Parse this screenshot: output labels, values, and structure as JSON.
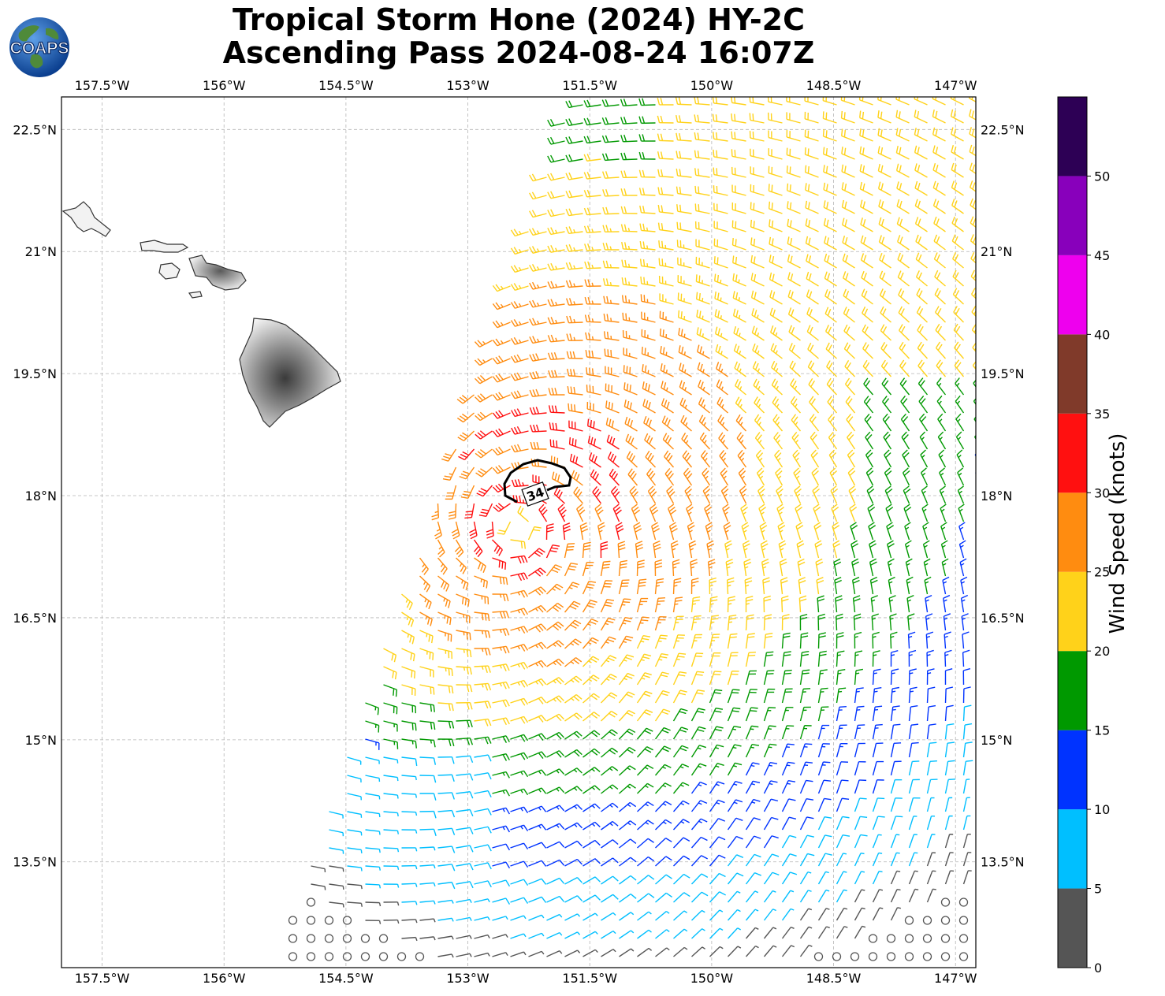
{
  "title": {
    "line1": "Tropical Storm Hone (2024) HY-2C",
    "line2": "Ascending Pass 2024-08-24 16:07Z"
  },
  "logo": {
    "text": "COAPS",
    "icon": "globe-icon"
  },
  "map": {
    "lon_range": [
      -158.0,
      -146.75
    ],
    "lat_range": [
      12.2,
      22.9
    ],
    "lon_ticks": [
      -157.5,
      -156,
      -154.5,
      -153,
      -151.5,
      -150,
      -148.5,
      -147
    ],
    "lon_tick_labels": [
      "157.5°W",
      "156°W",
      "154.5°W",
      "153°W",
      "151.5°W",
      "150°W",
      "148.5°W",
      "147°W"
    ],
    "lat_ticks": [
      13.5,
      15,
      16.5,
      18,
      19.5,
      21,
      22.5
    ],
    "lat_tick_labels": [
      "13.5°N",
      "15°N",
      "16.5°N",
      "18°N",
      "19.5°N",
      "21°N",
      "22.5°N"
    ],
    "gridlines": true,
    "storm_center": {
      "lon": -152.4,
      "lat": 17.6
    },
    "contour_label": "34",
    "land_color": "#f2f2f2",
    "coast_color": "#333333"
  },
  "colorbar": {
    "label": "Wind Speed (knots)",
    "ticks": [
      "0",
      "5",
      "10",
      "15",
      "20",
      "25",
      "30",
      "35",
      "40",
      "45",
      "50"
    ],
    "bins": [
      {
        "min": 0,
        "max": 5,
        "color": "#555555"
      },
      {
        "min": 5,
        "max": 10,
        "color": "#00bfff"
      },
      {
        "min": 10,
        "max": 15,
        "color": "#0033ff"
      },
      {
        "min": 15,
        "max": 20,
        "color": "#009900"
      },
      {
        "min": 20,
        "max": 25,
        "color": "#ffd21a"
      },
      {
        "min": 25,
        "max": 30,
        "color": "#ff8c10"
      },
      {
        "min": 30,
        "max": 35,
        "color": "#ff1010"
      },
      {
        "min": 35,
        "max": 40,
        "color": "#803a2a"
      },
      {
        "min": 40,
        "max": 45,
        "color": "#ee00ee"
      },
      {
        "min": 45,
        "max": 50,
        "color": "#8800bb"
      },
      {
        "min": 50,
        "max": 55,
        "color": "#2d0055"
      }
    ]
  }
}
